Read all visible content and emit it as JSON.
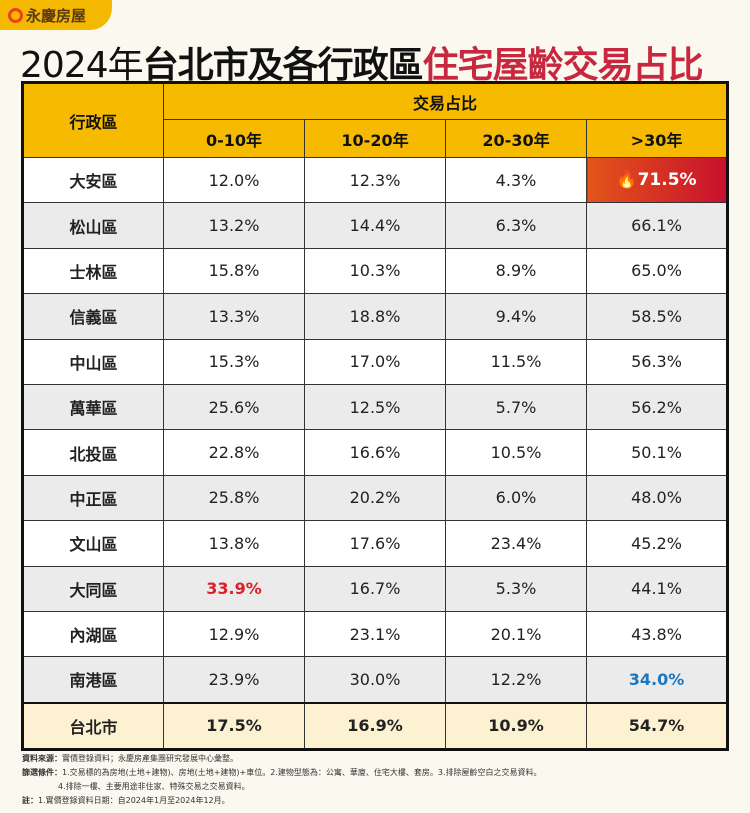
{
  "brand": "永慶房屋",
  "title": {
    "part1": "2024年",
    "part2": "台北市及各行政區",
    "part3": "住宅屋齡交易占比"
  },
  "colors": {
    "header": "#f6bb00",
    "title_accent": "#c8283f",
    "highlight_red": "#e01e2a",
    "highlight_blue": "#1a78c2"
  },
  "table": {
    "district_header": "行政區",
    "group_header": "交易占比",
    "columns": [
      "0-10年",
      "10-20年",
      "20-30年",
      ">30年"
    ],
    "rows": [
      {
        "district": "大安區",
        "values": [
          "12.0%",
          "12.3%",
          "4.3%",
          "71.5%"
        ]
      },
      {
        "district": "松山區",
        "values": [
          "13.2%",
          "14.4%",
          "6.3%",
          "66.1%"
        ]
      },
      {
        "district": "士林區",
        "values": [
          "15.8%",
          "10.3%",
          "8.9%",
          "65.0%"
        ]
      },
      {
        "district": "信義區",
        "values": [
          "13.3%",
          "18.8%",
          "9.4%",
          "58.5%"
        ]
      },
      {
        "district": "中山區",
        "values": [
          "15.3%",
          "17.0%",
          "11.5%",
          "56.3%"
        ]
      },
      {
        "district": "萬華區",
        "values": [
          "25.6%",
          "12.5%",
          "5.7%",
          "56.2%"
        ]
      },
      {
        "district": "北投區",
        "values": [
          "22.8%",
          "16.6%",
          "10.5%",
          "50.1%"
        ]
      },
      {
        "district": "中正區",
        "values": [
          "25.8%",
          "20.2%",
          "6.0%",
          "48.0%"
        ]
      },
      {
        "district": "文山區",
        "values": [
          "13.8%",
          "17.6%",
          "23.4%",
          "45.2%"
        ]
      },
      {
        "district": "大同區",
        "values": [
          "33.9%",
          "16.7%",
          "5.3%",
          "44.1%"
        ]
      },
      {
        "district": "內湖區",
        "values": [
          "12.9%",
          "23.1%",
          "20.1%",
          "43.8%"
        ]
      },
      {
        "district": "南港區",
        "values": [
          "23.9%",
          "30.0%",
          "12.2%",
          "34.0%"
        ]
      }
    ],
    "total": {
      "district": "台北市",
      "values": [
        "17.5%",
        "16.9%",
        "10.9%",
        "54.7%"
      ]
    },
    "hot_icon": "fire-icon"
  },
  "notes": {
    "source_label": "資料來源：",
    "source": "實價登錄資料；永慶房產集團研究發展中心彙整。",
    "filter_label": "篩選條件：",
    "filter1": "1.交易標的為房地(土地+建物)、房地(土地+建物)+車位。2.建物型態為：公寓、華廈、住宅大樓、套房。3.排除屋齡空白之交易資料。",
    "filter2": "4.排除一樓、主要用途非住家、特殊交易之交易資料。",
    "note_label": "註：",
    "note": "1.實價登錄資料日期：自2024年1月至2024年12月。"
  }
}
